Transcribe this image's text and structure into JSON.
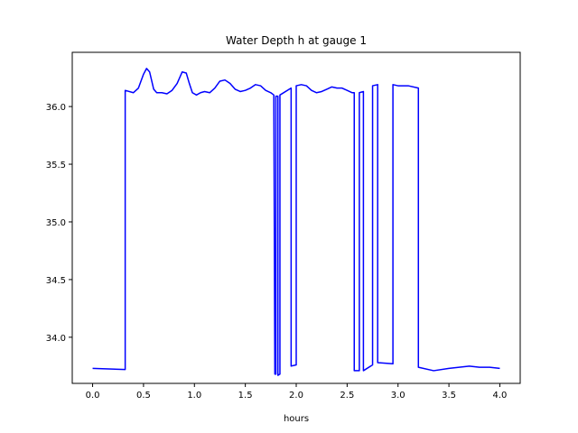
{
  "chart_data": {
    "type": "line",
    "title": "Water Depth h at gauge 1",
    "xlabel": "hours",
    "ylabel": "",
    "xlim": [
      -0.2,
      4.2
    ],
    "ylim": [
      33.6,
      36.47
    ],
    "xticks": [
      0.0,
      0.5,
      1.0,
      1.5,
      2.0,
      2.5,
      3.0,
      3.5,
      4.0
    ],
    "xtick_labels": [
      "0.0",
      "0.5",
      "1.0",
      "1.5",
      "2.0",
      "2.5",
      "3.0",
      "3.5",
      "4.0"
    ],
    "yticks": [
      34.0,
      34.5,
      35.0,
      35.5,
      36.0
    ],
    "ytick_labels": [
      "34.0",
      "34.5",
      "35.0",
      "35.5",
      "36.0"
    ],
    "grid": false,
    "series": [
      {
        "color": "#0000ff",
        "x": [
          0.0,
          0.32,
          0.32,
          0.4,
          0.45,
          0.5,
          0.53,
          0.56,
          0.6,
          0.63,
          0.68,
          0.73,
          0.78,
          0.83,
          0.88,
          0.92,
          0.95,
          0.98,
          1.02,
          1.06,
          1.1,
          1.15,
          1.2,
          1.25,
          1.3,
          1.35,
          1.4,
          1.45,
          1.5,
          1.55,
          1.6,
          1.65,
          1.7,
          1.75,
          1.78,
          1.79,
          1.8,
          1.8,
          1.82,
          1.82,
          1.84,
          1.84,
          1.95,
          1.95,
          2.0,
          2.0,
          2.05,
          2.1,
          2.15,
          2.2,
          2.25,
          2.3,
          2.35,
          2.4,
          2.45,
          2.5,
          2.55,
          2.57,
          2.57,
          2.62,
          2.62,
          2.66,
          2.66,
          2.75,
          2.75,
          2.8,
          2.8,
          2.95,
          2.95,
          3.0,
          3.1,
          3.2,
          3.2,
          3.35,
          3.5,
          3.6,
          3.7,
          3.8,
          3.9,
          4.0
        ],
        "y": [
          33.73,
          33.72,
          36.14,
          36.12,
          36.16,
          36.28,
          36.33,
          36.3,
          36.15,
          36.12,
          36.12,
          36.11,
          36.14,
          36.2,
          36.3,
          36.29,
          36.2,
          36.12,
          36.1,
          36.12,
          36.13,
          36.12,
          36.16,
          36.22,
          36.23,
          36.2,
          36.15,
          36.13,
          36.14,
          36.16,
          36.19,
          36.18,
          36.14,
          36.12,
          36.1,
          33.68,
          33.68,
          36.09,
          36.09,
          33.67,
          33.68,
          36.1,
          36.16,
          33.75,
          33.76,
          36.18,
          36.19,
          36.18,
          36.14,
          36.12,
          36.13,
          36.15,
          36.17,
          36.16,
          36.16,
          36.14,
          36.12,
          36.12,
          33.71,
          33.71,
          36.12,
          36.13,
          33.71,
          33.76,
          36.18,
          36.19,
          33.78,
          33.77,
          36.19,
          36.18,
          36.18,
          36.16,
          33.74,
          33.71,
          33.73,
          33.74,
          33.75,
          33.74,
          33.74,
          33.73
        ]
      }
    ]
  }
}
